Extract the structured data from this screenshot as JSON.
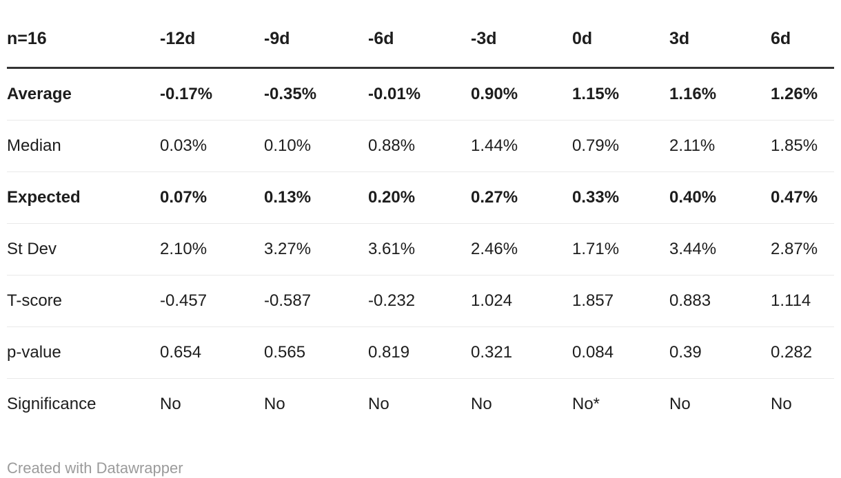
{
  "chart_data": {
    "type": "table",
    "title": "n=16",
    "header": [
      "n=16",
      "-12d",
      "-9d",
      "-6d",
      "-3d",
      "0d",
      "3d",
      "6d"
    ],
    "rows": [
      {
        "label": "Average",
        "bold": true,
        "values": [
          "-0.17%",
          "-0.35%",
          "-0.01%",
          "0.90%",
          "1.15%",
          "1.16%",
          "1.26%"
        ]
      },
      {
        "label": "Median",
        "bold": false,
        "values": [
          "0.03%",
          "0.10%",
          "0.88%",
          "1.44%",
          "0.79%",
          "2.11%",
          "1.85%"
        ]
      },
      {
        "label": "Expected",
        "bold": true,
        "values": [
          "0.07%",
          "0.13%",
          "0.20%",
          "0.27%",
          "0.33%",
          "0.40%",
          "0.47%"
        ]
      },
      {
        "label": "St Dev",
        "bold": false,
        "values": [
          "2.10%",
          "3.27%",
          "3.61%",
          "2.46%",
          "1.71%",
          "3.44%",
          "2.87%"
        ]
      },
      {
        "label": "T-score",
        "bold": false,
        "values": [
          "-0.457",
          "-0.587",
          "-0.232",
          "1.024",
          "1.857",
          "0.883",
          "1.114"
        ]
      },
      {
        "label": "p-value",
        "bold": false,
        "values": [
          "0.654",
          "0.565",
          "0.819",
          "0.321",
          "0.084",
          "0.39",
          "0.282"
        ]
      },
      {
        "label": "Significance",
        "bold": false,
        "values": [
          "No",
          "No",
          "No",
          "No",
          "No*",
          "No",
          "No"
        ]
      }
    ],
    "layout": {
      "grid": "horizontal-rules-only",
      "header_rule_color": "#333333",
      "row_rule_color": "#e9e9e9"
    }
  },
  "footer": {
    "credit": "Created with Datawrapper"
  },
  "colors": {
    "background": "#ffffff",
    "text": "#1d1d1d",
    "header_rule": "#333333",
    "row_rule": "#e9e9e9",
    "credit_text": "#9b9b9b"
  }
}
